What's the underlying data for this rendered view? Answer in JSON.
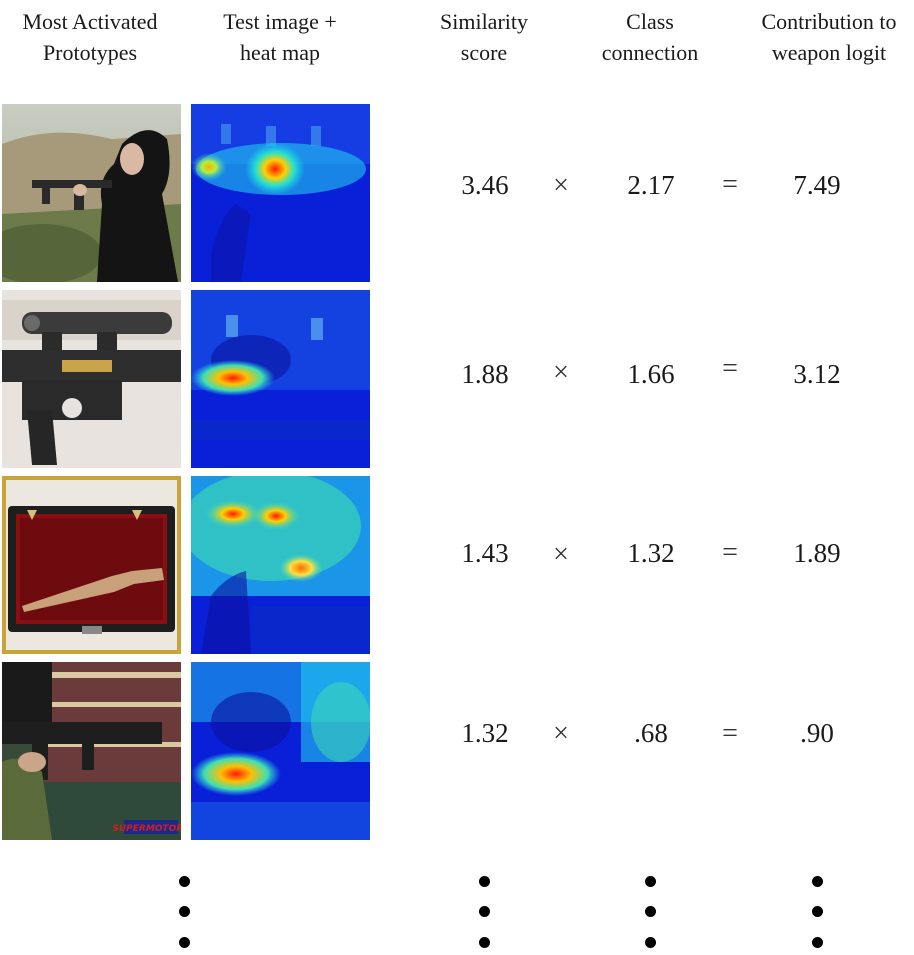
{
  "headers": {
    "prototypes": [
      "Most Activated",
      "Prototypes"
    ],
    "test_image": [
      "Test image +",
      "heat map"
    ],
    "similarity": [
      "Similarity",
      "score"
    ],
    "class_connection": [
      "Class",
      "connection"
    ],
    "contribution": [
      "Contribution to",
      "weapon logit"
    ]
  },
  "operators": {
    "times": "×",
    "equals": "="
  },
  "rows": [
    {
      "similarity": "3.46",
      "connection": "2.17",
      "contribution": "7.49"
    },
    {
      "similarity": "1.88",
      "connection": "1.66",
      "contribution": "3.12"
    },
    {
      "similarity": "1.43",
      "connection": "1.32",
      "contribution": "1.89"
    },
    {
      "similarity": "1.32",
      "connection": ".68",
      "contribution": ".90"
    }
  ],
  "prototype_watermark": "SUPERMOTORS",
  "colors": {
    "heatmap_low": "#0a1fd8",
    "heatmap_mid": "#22c8f0",
    "heatmap_high": "#ff1a00"
  }
}
